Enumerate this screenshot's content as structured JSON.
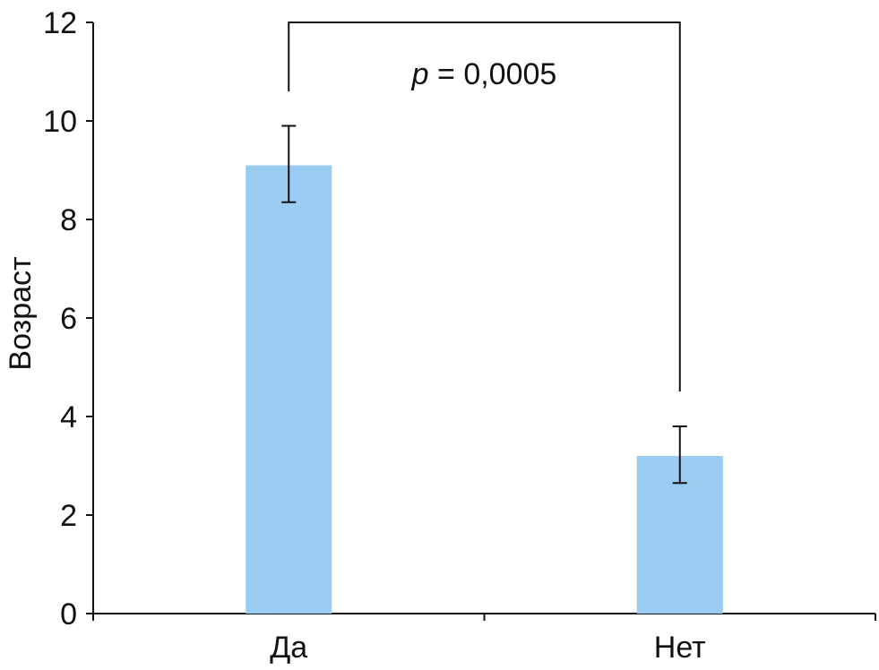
{
  "chart_data": {
    "type": "bar",
    "categories": [
      "Да",
      "Нет"
    ],
    "values": [
      9.1,
      3.2
    ],
    "error_low": [
      8.35,
      2.65
    ],
    "error_high": [
      9.9,
      3.8
    ],
    "title": "",
    "xlabel": "",
    "ylabel": "Возраст",
    "ylim": [
      0,
      12
    ],
    "yticks": [
      0,
      2,
      4,
      6,
      8,
      10,
      12
    ],
    "grid": false,
    "legend": "none",
    "bar_color": "#99CCF0",
    "axis_color": "#111111",
    "annotation": {
      "p_symbol": "p",
      "p_rest": " = 0,0005"
    }
  }
}
